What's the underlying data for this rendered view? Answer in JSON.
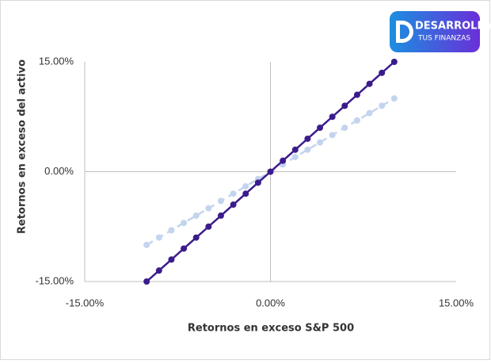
{
  "logo": {
    "line1": "DESARROLLA",
    "line2": "TUS FINANZAS"
  },
  "chart_data": {
    "type": "line",
    "x_label": "Retornos en exceso S&P 500",
    "y_label": "Retornos en exceso del activo",
    "x": [
      -10,
      -9,
      -8,
      -7,
      -6,
      -5,
      -4,
      -3,
      -2,
      -1,
      0,
      1,
      2,
      3,
      4,
      5,
      6,
      7,
      8,
      9,
      10
    ],
    "series": [
      {
        "color": "#c3d4ee",
        "dashed": true,
        "values": [
          -10,
          -9,
          -8,
          -7,
          -6,
          -5,
          -4,
          -3,
          -2,
          -1,
          0,
          1,
          2,
          3,
          4,
          5,
          6,
          7,
          8,
          9,
          10
        ]
      },
      {
        "color": "#3b1c8c",
        "dashed": false,
        "values": [
          -15,
          -13.5,
          -12,
          -10.5,
          -9,
          -7.5,
          -6,
          -4.5,
          -3,
          -1.5,
          0,
          1.5,
          3,
          4.5,
          6,
          7.5,
          9,
          10.5,
          12,
          13.5,
          15
        ]
      }
    ],
    "xlim": [
      -15,
      15
    ],
    "ylim": [
      -15,
      15
    ],
    "xticks": [
      {
        "value": -15,
        "label": "-15.00%"
      },
      {
        "value": 0,
        "label": "0.00%"
      },
      {
        "value": 15,
        "label": "15.00%"
      }
    ],
    "yticks": [
      {
        "value": -15,
        "label": "-15.00%"
      },
      {
        "value": 0,
        "label": "0.00%"
      },
      {
        "value": 15,
        "label": "15.00%"
      }
    ]
  }
}
